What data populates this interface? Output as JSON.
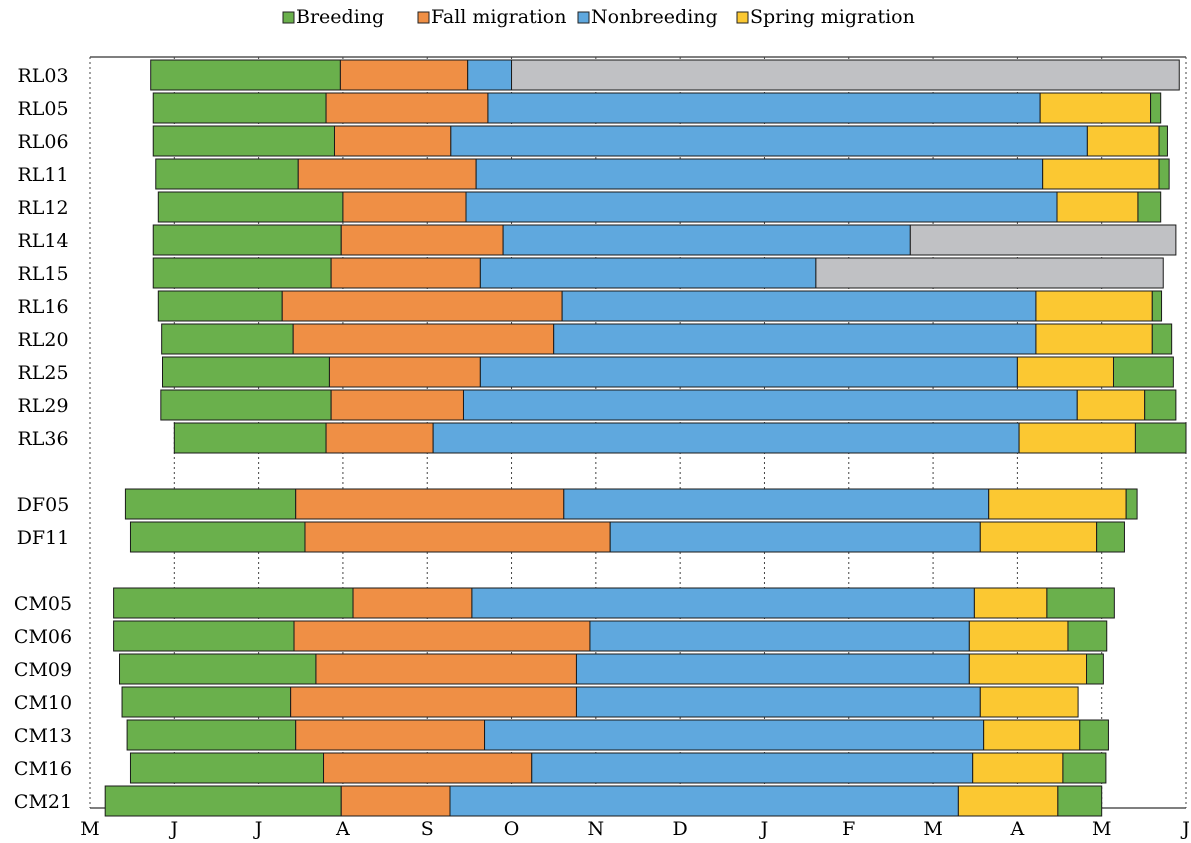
{
  "chart_data": {
    "type": "bar",
    "orientation": "horizontal-stacked-timeline",
    "x_unit": "month",
    "x_range": [
      0,
      13
    ],
    "x_ticks": [
      {
        "x": 0,
        "label": "M"
      },
      {
        "x": 1,
        "label": "J"
      },
      {
        "x": 2,
        "label": "J"
      },
      {
        "x": 3,
        "label": "A"
      },
      {
        "x": 4,
        "label": "S"
      },
      {
        "x": 5,
        "label": "O"
      },
      {
        "x": 6,
        "label": "N"
      },
      {
        "x": 7,
        "label": "D"
      },
      {
        "x": 8,
        "label": "J"
      },
      {
        "x": 9,
        "label": "F"
      },
      {
        "x": 10,
        "label": "M"
      },
      {
        "x": 11,
        "label": "A"
      },
      {
        "x": 12,
        "label": "M"
      },
      {
        "x": 13,
        "label": "J"
      }
    ],
    "gridlines": "vertical-dotted",
    "legend": {
      "position": "top",
      "items": [
        {
          "key": "breeding",
          "label": "Breeding",
          "color": "#6ab04c"
        },
        {
          "key": "fall",
          "label": "Fall migration",
          "color": "#ef8f45"
        },
        {
          "key": "nonbreeding",
          "label": "Nonbreeding",
          "color": "#5fa8de"
        },
        {
          "key": "spring",
          "label": "Spring migration",
          "color": "#fbc832"
        }
      ]
    },
    "unknown_color": "#c0c1c4",
    "groups": [
      {
        "name": "RL",
        "rows": [
          {
            "label": "RL03",
            "segments": [
              {
                "phase": "breeding",
                "start": 0.72,
                "end": 2.97
              },
              {
                "phase": "fall",
                "start": 2.97,
                "end": 4.48
              },
              {
                "phase": "nonbreeding",
                "start": 4.48,
                "end": 5.0
              },
              {
                "phase": "unknown",
                "start": 5.0,
                "end": 12.92
              }
            ]
          },
          {
            "label": "RL05",
            "segments": [
              {
                "phase": "breeding",
                "start": 0.75,
                "end": 2.8
              },
              {
                "phase": "fall",
                "start": 2.8,
                "end": 4.72
              },
              {
                "phase": "nonbreeding",
                "start": 4.72,
                "end": 11.27
              },
              {
                "phase": "spring",
                "start": 11.27,
                "end": 12.58
              },
              {
                "phase": "breeding",
                "start": 12.58,
                "end": 12.7
              }
            ]
          },
          {
            "label": "RL06",
            "segments": [
              {
                "phase": "breeding",
                "start": 0.75,
                "end": 2.9
              },
              {
                "phase": "fall",
                "start": 2.9,
                "end": 4.28
              },
              {
                "phase": "nonbreeding",
                "start": 4.28,
                "end": 11.83
              },
              {
                "phase": "spring",
                "start": 11.83,
                "end": 12.68
              },
              {
                "phase": "breeding",
                "start": 12.68,
                "end": 12.78
              }
            ]
          },
          {
            "label": "RL11",
            "segments": [
              {
                "phase": "breeding",
                "start": 0.78,
                "end": 2.47
              },
              {
                "phase": "fall",
                "start": 2.47,
                "end": 4.58
              },
              {
                "phase": "nonbreeding",
                "start": 4.58,
                "end": 11.3
              },
              {
                "phase": "spring",
                "start": 11.3,
                "end": 12.68
              },
              {
                "phase": "breeding",
                "start": 12.68,
                "end": 12.8
              }
            ]
          },
          {
            "label": "RL12",
            "segments": [
              {
                "phase": "breeding",
                "start": 0.81,
                "end": 3.0
              },
              {
                "phase": "fall",
                "start": 3.0,
                "end": 4.46
              },
              {
                "phase": "nonbreeding",
                "start": 4.46,
                "end": 11.47
              },
              {
                "phase": "spring",
                "start": 11.47,
                "end": 12.43
              },
              {
                "phase": "breeding",
                "start": 12.43,
                "end": 12.7
              }
            ]
          },
          {
            "label": "RL14",
            "segments": [
              {
                "phase": "breeding",
                "start": 0.75,
                "end": 2.98
              },
              {
                "phase": "fall",
                "start": 2.98,
                "end": 4.9
              },
              {
                "phase": "nonbreeding",
                "start": 4.9,
                "end": 9.73
              },
              {
                "phase": "unknown",
                "start": 9.73,
                "end": 12.88
              }
            ]
          },
          {
            "label": "RL15",
            "segments": [
              {
                "phase": "breeding",
                "start": 0.75,
                "end": 2.86
              },
              {
                "phase": "fall",
                "start": 2.86,
                "end": 4.63
              },
              {
                "phase": "nonbreeding",
                "start": 4.63,
                "end": 8.61
              },
              {
                "phase": "unknown",
                "start": 8.61,
                "end": 12.73
              }
            ]
          },
          {
            "label": "RL16",
            "segments": [
              {
                "phase": "breeding",
                "start": 0.81,
                "end": 2.28
              },
              {
                "phase": "fall",
                "start": 2.28,
                "end": 5.6
              },
              {
                "phase": "nonbreeding",
                "start": 5.6,
                "end": 11.22
              },
              {
                "phase": "spring",
                "start": 11.22,
                "end": 12.6
              },
              {
                "phase": "breeding",
                "start": 12.6,
                "end": 12.71
              }
            ]
          },
          {
            "label": "RL20",
            "segments": [
              {
                "phase": "breeding",
                "start": 0.85,
                "end": 2.41
              },
              {
                "phase": "fall",
                "start": 2.41,
                "end": 5.5
              },
              {
                "phase": "nonbreeding",
                "start": 5.5,
                "end": 11.22
              },
              {
                "phase": "spring",
                "start": 11.22,
                "end": 12.6
              },
              {
                "phase": "breeding",
                "start": 12.6,
                "end": 12.83
              }
            ]
          },
          {
            "label": "RL25",
            "segments": [
              {
                "phase": "breeding",
                "start": 0.86,
                "end": 2.84
              },
              {
                "phase": "fall",
                "start": 2.84,
                "end": 4.63
              },
              {
                "phase": "nonbreeding",
                "start": 4.63,
                "end": 11.0
              },
              {
                "phase": "spring",
                "start": 11.0,
                "end": 12.14
              },
              {
                "phase": "breeding",
                "start": 12.14,
                "end": 12.85
              }
            ]
          },
          {
            "label": "RL29",
            "segments": [
              {
                "phase": "breeding",
                "start": 0.84,
                "end": 2.86
              },
              {
                "phase": "fall",
                "start": 2.86,
                "end": 4.43
              },
              {
                "phase": "nonbreeding",
                "start": 4.43,
                "end": 11.71
              },
              {
                "phase": "spring",
                "start": 11.71,
                "end": 12.51
              },
              {
                "phase": "breeding",
                "start": 12.51,
                "end": 12.88
              }
            ]
          },
          {
            "label": "RL36",
            "segments": [
              {
                "phase": "breeding",
                "start": 1.0,
                "end": 2.8
              },
              {
                "phase": "fall",
                "start": 2.8,
                "end": 4.07
              },
              {
                "phase": "nonbreeding",
                "start": 4.07,
                "end": 11.02
              },
              {
                "phase": "spring",
                "start": 11.02,
                "end": 12.4
              },
              {
                "phase": "breeding",
                "start": 12.4,
                "end": 13.0
              }
            ]
          }
        ]
      },
      {
        "name": "DF",
        "rows": [
          {
            "label": "DF05",
            "segments": [
              {
                "phase": "breeding",
                "start": 0.42,
                "end": 2.44
              },
              {
                "phase": "fall",
                "start": 2.44,
                "end": 5.62
              },
              {
                "phase": "nonbreeding",
                "start": 5.62,
                "end": 10.66
              },
              {
                "phase": "spring",
                "start": 10.66,
                "end": 12.29
              },
              {
                "phase": "breeding",
                "start": 12.29,
                "end": 12.42
              }
            ]
          },
          {
            "label": "DF11",
            "segments": [
              {
                "phase": "breeding",
                "start": 0.48,
                "end": 2.55
              },
              {
                "phase": "fall",
                "start": 2.55,
                "end": 6.17
              },
              {
                "phase": "nonbreeding",
                "start": 6.17,
                "end": 10.56
              },
              {
                "phase": "spring",
                "start": 10.56,
                "end": 11.94
              },
              {
                "phase": "breeding",
                "start": 11.94,
                "end": 12.27
              }
            ]
          }
        ]
      },
      {
        "name": "CM",
        "rows": [
          {
            "label": "CM05",
            "segments": [
              {
                "phase": "breeding",
                "start": 0.28,
                "end": 3.12
              },
              {
                "phase": "fall",
                "start": 3.12,
                "end": 4.53
              },
              {
                "phase": "nonbreeding",
                "start": 4.53,
                "end": 10.49
              },
              {
                "phase": "spring",
                "start": 10.49,
                "end": 11.35
              },
              {
                "phase": "breeding",
                "start": 11.35,
                "end": 12.15
              }
            ]
          },
          {
            "label": "CM06",
            "segments": [
              {
                "phase": "breeding",
                "start": 0.28,
                "end": 2.42
              },
              {
                "phase": "fall",
                "start": 2.42,
                "end": 5.93
              },
              {
                "phase": "nonbreeding",
                "start": 5.93,
                "end": 10.43
              },
              {
                "phase": "spring",
                "start": 10.43,
                "end": 11.6
              },
              {
                "phase": "breeding",
                "start": 11.6,
                "end": 12.06
              }
            ]
          },
          {
            "label": "CM09",
            "segments": [
              {
                "phase": "breeding",
                "start": 0.35,
                "end": 2.68
              },
              {
                "phase": "fall",
                "start": 2.68,
                "end": 5.77
              },
              {
                "phase": "nonbreeding",
                "start": 5.77,
                "end": 10.43
              },
              {
                "phase": "spring",
                "start": 10.43,
                "end": 11.82
              },
              {
                "phase": "breeding",
                "start": 11.82,
                "end": 12.02
              }
            ]
          },
          {
            "label": "CM10",
            "segments": [
              {
                "phase": "breeding",
                "start": 0.38,
                "end": 2.38
              },
              {
                "phase": "fall",
                "start": 2.38,
                "end": 5.77
              },
              {
                "phase": "nonbreeding",
                "start": 5.77,
                "end": 10.56
              },
              {
                "phase": "spring",
                "start": 10.56,
                "end": 11.72
              }
            ]
          },
          {
            "label": "CM13",
            "segments": [
              {
                "phase": "breeding",
                "start": 0.44,
                "end": 2.44
              },
              {
                "phase": "fall",
                "start": 2.44,
                "end": 4.68
              },
              {
                "phase": "nonbreeding",
                "start": 4.68,
                "end": 10.6
              },
              {
                "phase": "spring",
                "start": 10.6,
                "end": 11.74
              },
              {
                "phase": "breeding",
                "start": 11.74,
                "end": 12.08
              }
            ]
          },
          {
            "label": "CM16",
            "segments": [
              {
                "phase": "breeding",
                "start": 0.48,
                "end": 2.77
              },
              {
                "phase": "fall",
                "start": 2.77,
                "end": 5.24
              },
              {
                "phase": "nonbreeding",
                "start": 5.24,
                "end": 10.47
              },
              {
                "phase": "spring",
                "start": 10.47,
                "end": 11.54
              },
              {
                "phase": "breeding",
                "start": 11.54,
                "end": 12.05
              }
            ]
          },
          {
            "label": "CM21",
            "segments": [
              {
                "phase": "breeding",
                "start": 0.18,
                "end": 2.98
              },
              {
                "phase": "fall",
                "start": 2.98,
                "end": 4.27
              },
              {
                "phase": "nonbreeding",
                "start": 4.27,
                "end": 10.3
              },
              {
                "phase": "spring",
                "start": 10.3,
                "end": 11.48
              },
              {
                "phase": "breeding",
                "start": 11.48,
                "end": 12.0
              }
            ]
          }
        ]
      }
    ]
  }
}
